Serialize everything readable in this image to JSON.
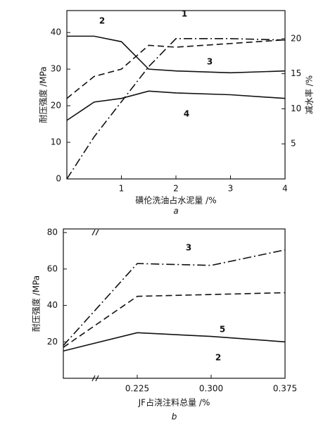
{
  "chart_data": [
    {
      "type": "line",
      "subtitle": "a",
      "xlabel": "磺伦洗油占水泥量 /%",
      "ylabel": "耐压强度 /MPa",
      "y2label": "减水率 /%",
      "x": [
        0,
        0.5,
        1,
        1.5,
        2,
        3,
        4
      ],
      "xlim": [
        0,
        4
      ],
      "xticks": [
        1,
        2,
        3,
        4
      ],
      "ylim": [
        0,
        46
      ],
      "yticks": [
        0,
        10,
        20,
        30,
        40
      ],
      "y2lim": [
        0,
        24
      ],
      "y2ticks": [
        5,
        10,
        15,
        20
      ],
      "grid": false,
      "series": [
        {
          "name": "1",
          "color": "#111111",
          "dash": "dashdot",
          "axis": "y2",
          "values": [
            0,
            6,
            11,
            16,
            20,
            20,
            19.8
          ]
        },
        {
          "name": "2",
          "color": "#111111",
          "dash": "solid",
          "values": [
            39,
            39,
            37.5,
            30,
            29.5,
            29,
            29.5
          ]
        },
        {
          "name": "3",
          "color": "#111111",
          "dash": "dashed",
          "values": [
            22,
            28,
            30,
            36.5,
            36,
            37,
            38
          ]
        },
        {
          "name": "4",
          "color": "#111111",
          "dash": "solid",
          "values": [
            16,
            21,
            22,
            24,
            23.5,
            23,
            22
          ]
        }
      ]
    },
    {
      "type": "line",
      "subtitle": "b",
      "xlabel": "JF占浇注料总量 /%",
      "ylabel": "耐压强度 /MPa",
      "categories": [
        null,
        "0.225",
        "0.300",
        "0.375"
      ],
      "ylim": [
        0,
        82
      ],
      "yticks": [
        20,
        40,
        60,
        80
      ],
      "grid": false,
      "series": [
        {
          "name": "3",
          "color": "#111111",
          "dash": "dashdot",
          "values": [
            18,
            63,
            62,
            70.5
          ]
        },
        {
          "name": "5",
          "color": "#111111",
          "dash": "dashed",
          "values": [
            17,
            45,
            46,
            47
          ]
        },
        {
          "name": "2",
          "color": "#111111",
          "dash": "solid",
          "values": [
            15,
            25,
            23,
            20
          ]
        }
      ]
    }
  ]
}
